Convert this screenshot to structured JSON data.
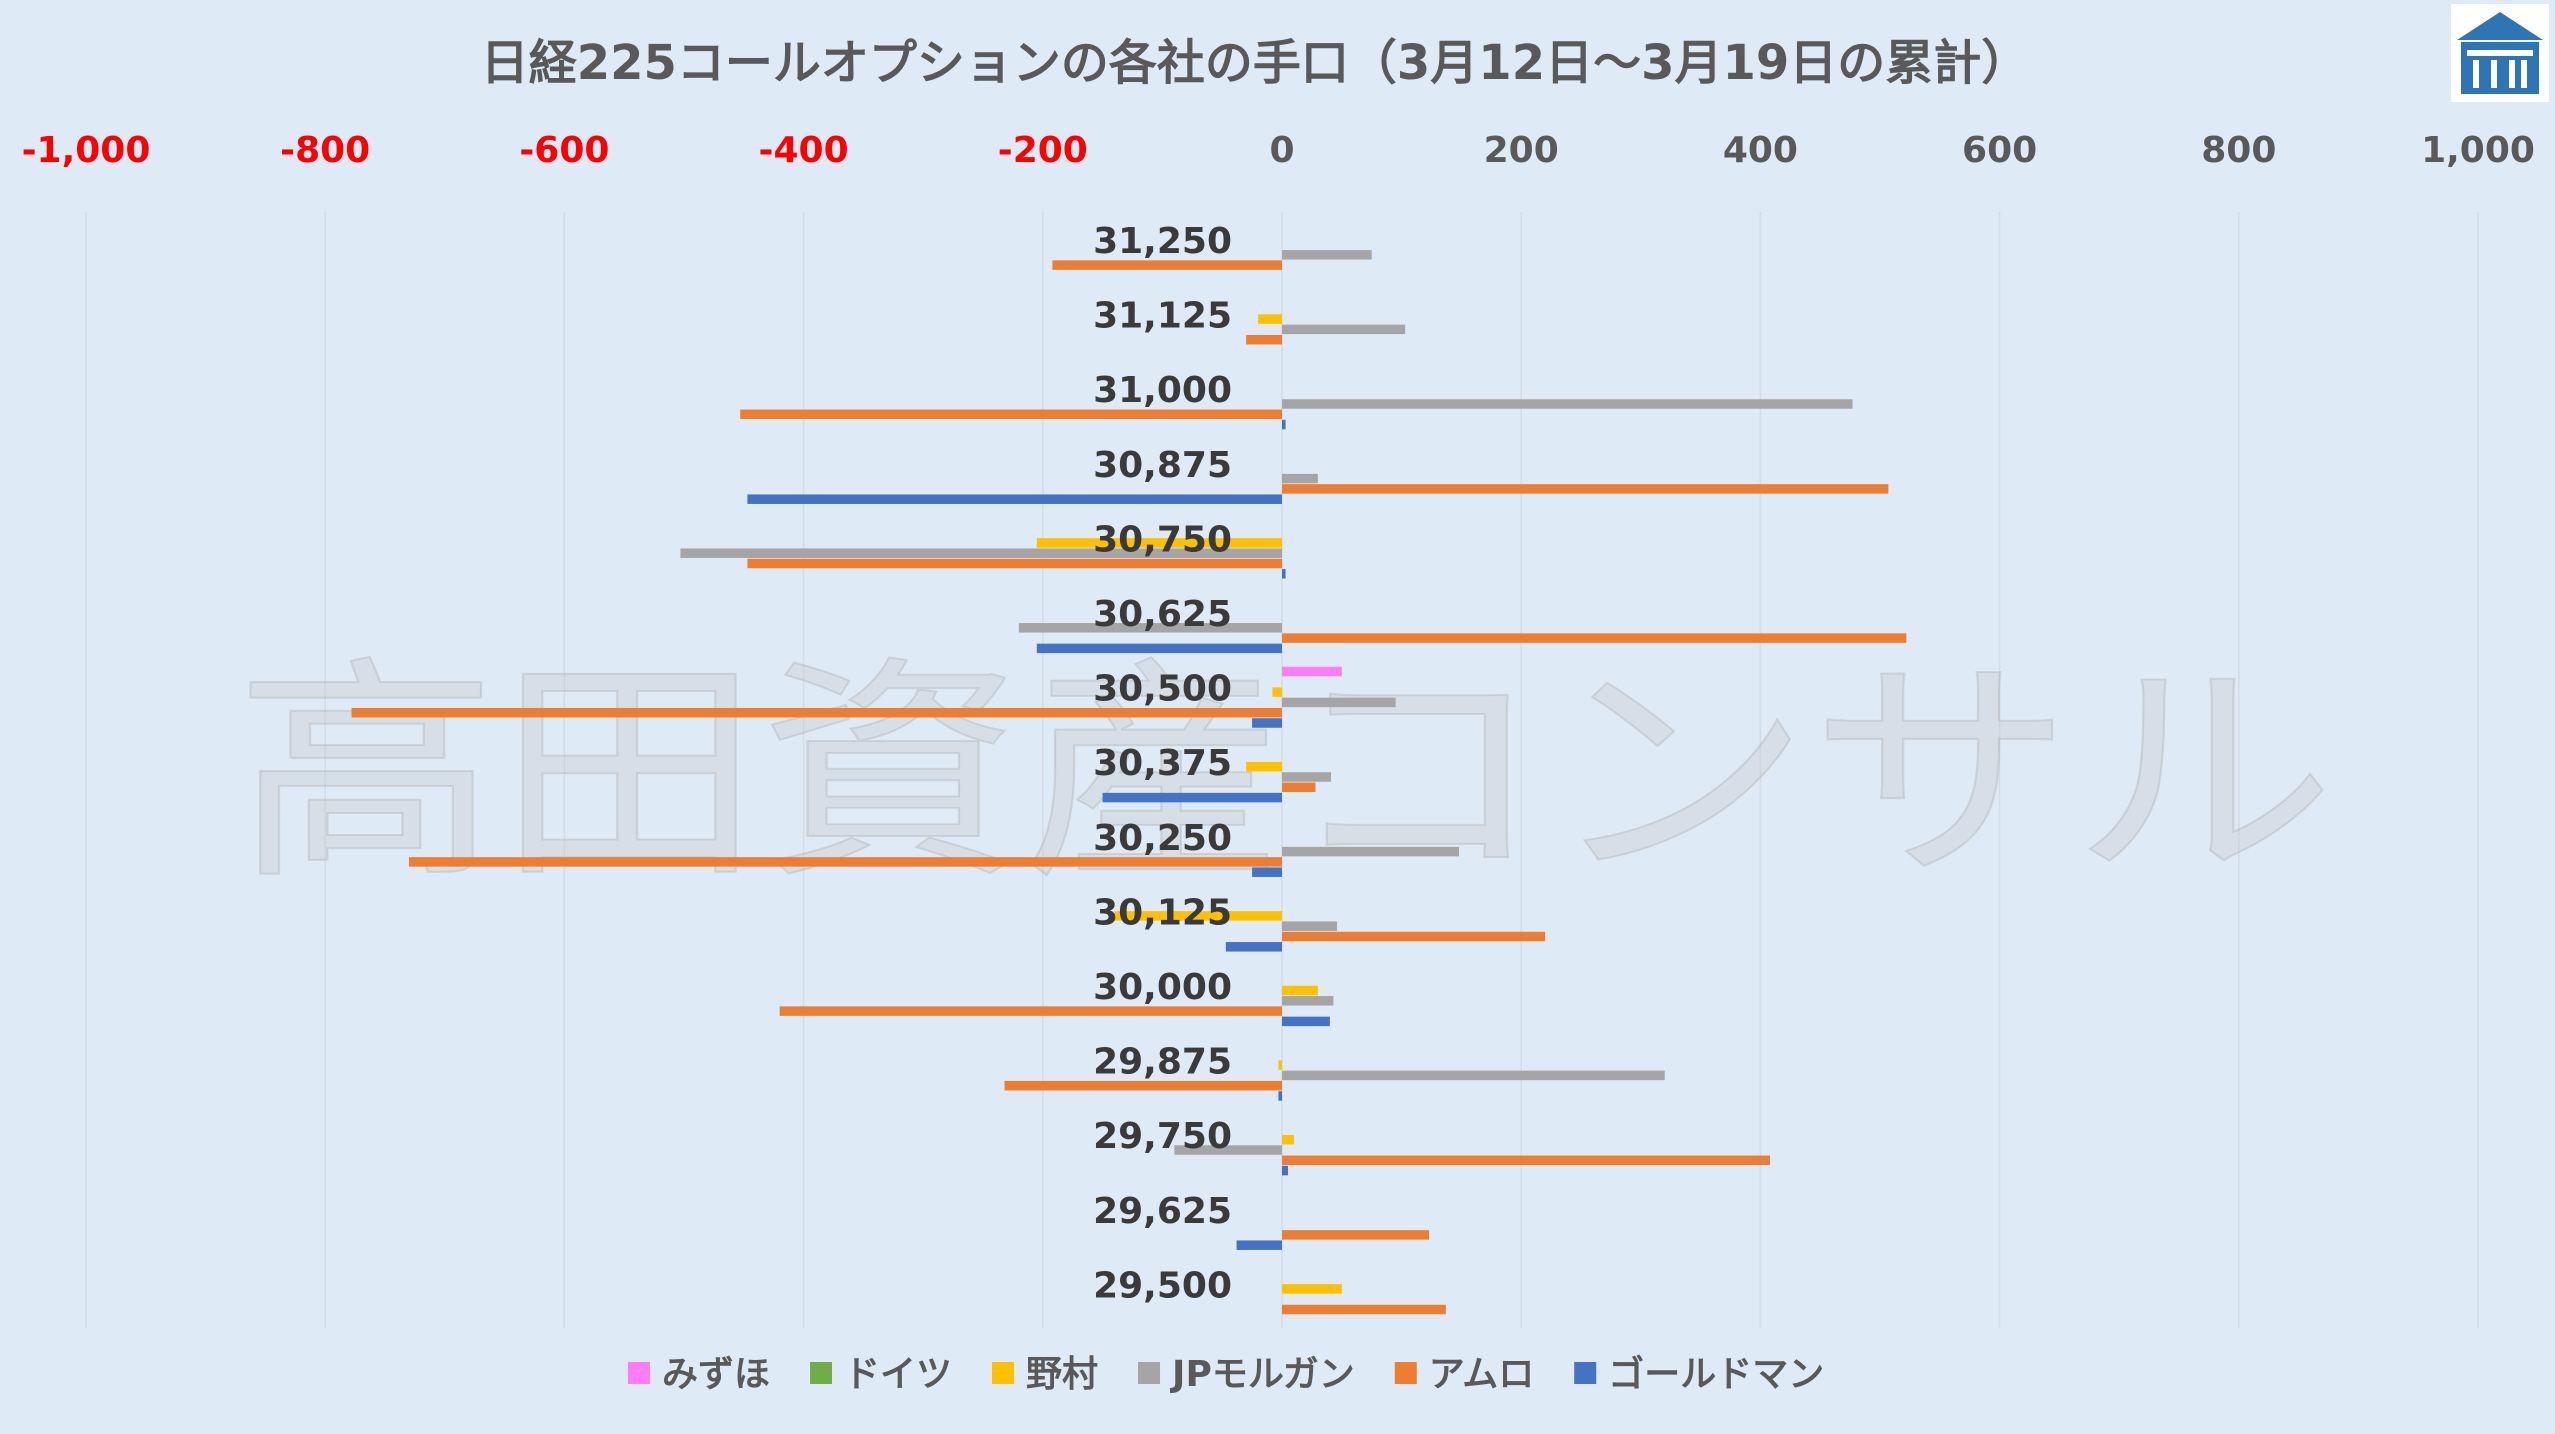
{
  "chart_data": {
    "type": "bar",
    "orientation": "horizontal",
    "title": "日経225コールオプションの各社の手口（3月12日～3月19日の累計）",
    "watermark": "高田資産コンサル",
    "categories": [
      "31,250",
      "31,125",
      "31,000",
      "30,875",
      "30,750",
      "30,625",
      "30,500",
      "30,375",
      "30,250",
      "30,125",
      "30,000",
      "29,875",
      "29,750",
      "29,625",
      "29,500"
    ],
    "xlim": [
      -1000,
      1000
    ],
    "xticks": [
      -1000,
      -800,
      -600,
      -400,
      -200,
      0,
      200,
      400,
      600,
      800,
      1000
    ],
    "xtick_labels": [
      "-1,000",
      "-800",
      "-600",
      "-400",
      "-200",
      "0",
      "200",
      "400",
      "600",
      "800",
      "1,000"
    ],
    "negative_tick_color": "#ff0000",
    "positive_tick_color": "#595959",
    "grid": true,
    "legend_position": "bottom",
    "series": [
      {
        "name": "みずほ",
        "color": "#ff7cf4",
        "values": [
          0,
          0,
          0,
          0,
          0,
          0,
          50,
          0,
          0,
          0,
          0,
          0,
          0,
          0,
          0
        ]
      },
      {
        "name": "ドイツ",
        "color": "#70ad47",
        "values": [
          0,
          0,
          0,
          0,
          0,
          0,
          0,
          0,
          0,
          0,
          0,
          0,
          0,
          0,
          0
        ]
      },
      {
        "name": "野村",
        "color": "#ffc000",
        "values": [
          0,
          -20,
          0,
          0,
          -205,
          0,
          -8,
          -30,
          0,
          -140,
          30,
          -3,
          10,
          0,
          50
        ]
      },
      {
        "name": "JPモルガン",
        "color": "#a5a5a5",
        "values": [
          75,
          103,
          477,
          30,
          -503,
          -220,
          95,
          41,
          148,
          46,
          43,
          320,
          -90,
          0,
          0
        ]
      },
      {
        "name": "アムロ",
        "color": "#ed7d31",
        "values": [
          -192,
          -30,
          -453,
          507,
          -447,
          522,
          -778,
          28,
          -730,
          220,
          -420,
          -232,
          408,
          123,
          137
        ]
      },
      {
        "name": "ゴールドマン",
        "color": "#4472c4",
        "values": [
          0,
          0,
          3,
          -447,
          3,
          -205,
          -25,
          -150,
          -25,
          -47,
          40,
          -3,
          5,
          -38,
          0
        ]
      }
    ]
  }
}
